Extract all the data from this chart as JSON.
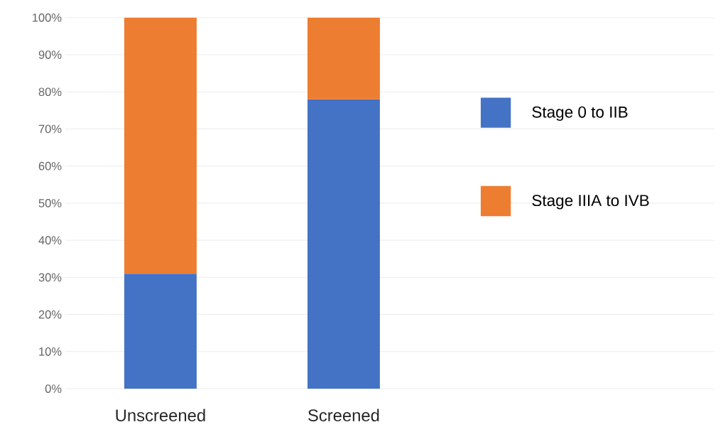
{
  "chart_data": {
    "type": "bar",
    "stacked": true,
    "categories": [
      "Unscreened",
      "Screened"
    ],
    "series": [
      {
        "name": "Stage 0 to IIB",
        "color": "#4472c4",
        "values": [
          31,
          78
        ]
      },
      {
        "name": "Stage IIIA to IVB",
        "color": "#ed7d31",
        "values": [
          69,
          22
        ]
      }
    ],
    "ylim": [
      0,
      100
    ],
    "yticks": [
      {
        "value": 0,
        "label": "0%"
      },
      {
        "value": 10,
        "label": "10%"
      },
      {
        "value": 20,
        "label": "20%"
      },
      {
        "value": 30,
        "label": "30%"
      },
      {
        "value": 40,
        "label": "40%"
      },
      {
        "value": 50,
        "label": "50%"
      },
      {
        "value": 60,
        "label": "60%"
      },
      {
        "value": 70,
        "label": "70%"
      },
      {
        "value": 80,
        "label": "80%"
      },
      {
        "value": 90,
        "label": "90%"
      },
      {
        "value": 100,
        "label": "100%"
      }
    ],
    "grid": "y",
    "legend": "right"
  }
}
